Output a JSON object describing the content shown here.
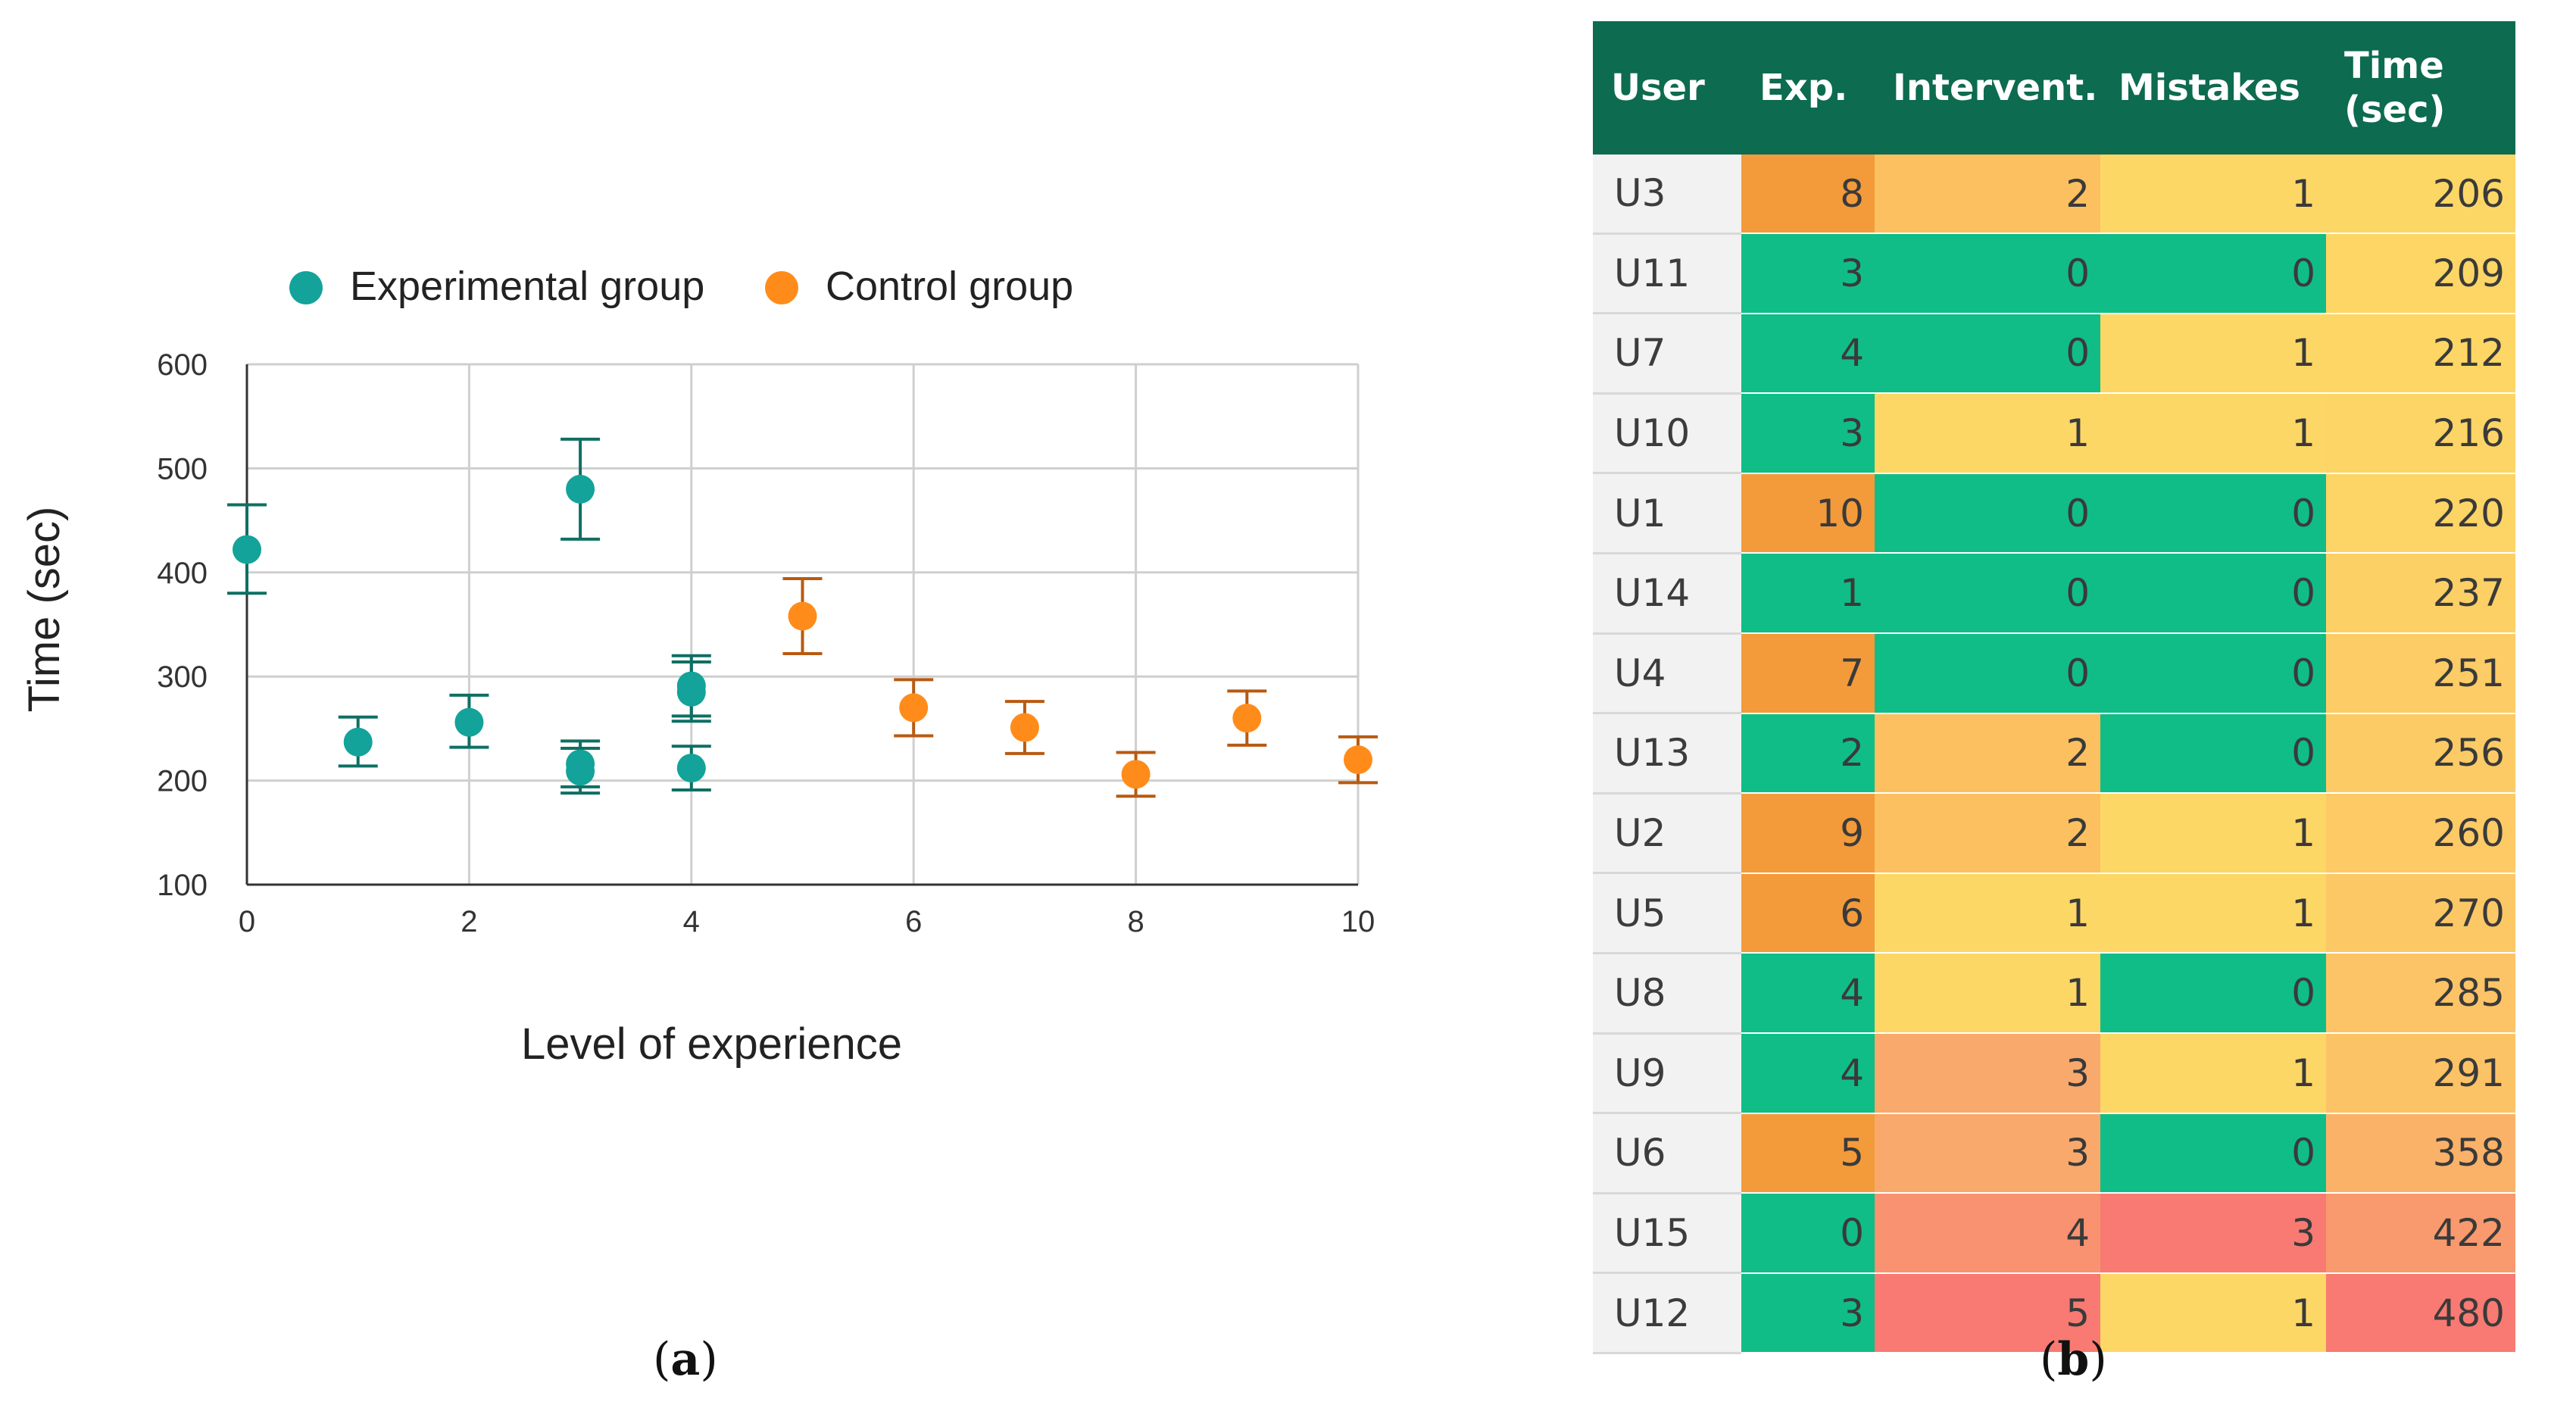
{
  "chart_data": {
    "type": "scatter",
    "xlabel": "Level of experience",
    "ylabel": "Time (sec)",
    "xlim": [
      0,
      10
    ],
    "ylim": [
      100,
      600
    ],
    "xticks": [
      "0",
      "2",
      "4",
      "6",
      "8",
      "10"
    ],
    "yticks": [
      "100",
      "200",
      "300",
      "400",
      "500",
      "600"
    ],
    "grid": true,
    "legend_position": "top",
    "series": [
      {
        "name": "Experimental group",
        "color": "#13a39a",
        "points": [
          {
            "x": 0,
            "y": 422,
            "low": 380,
            "high": 465
          },
          {
            "x": 1,
            "y": 237,
            "low": 214,
            "high": 261
          },
          {
            "x": 2,
            "y": 256,
            "low": 232,
            "high": 282
          },
          {
            "x": 3,
            "y": 480,
            "low": 432,
            "high": 528
          },
          {
            "x": 3,
            "y": 216,
            "low": 194,
            "high": 238
          },
          {
            "x": 3,
            "y": 209,
            "low": 188,
            "high": 231
          },
          {
            "x": 4,
            "y": 291,
            "low": 262,
            "high": 320
          },
          {
            "x": 4,
            "y": 285,
            "low": 257,
            "high": 314
          },
          {
            "x": 4,
            "y": 212,
            "low": 191,
            "high": 233
          }
        ]
      },
      {
        "name": "Control group",
        "color": "#ff8c1a",
        "points": [
          {
            "x": 5,
            "y": 358,
            "low": 322,
            "high": 394
          },
          {
            "x": 6,
            "y": 270,
            "low": 243,
            "high": 297
          },
          {
            "x": 7,
            "y": 251,
            "low": 226,
            "high": 276
          },
          {
            "x": 8,
            "y": 206,
            "low": 185,
            "high": 227
          },
          {
            "x": 9,
            "y": 260,
            "low": 234,
            "high": 286
          },
          {
            "x": 10,
            "y": 220,
            "low": 198,
            "high": 242
          }
        ]
      }
    ]
  },
  "table": {
    "headers": [
      "User",
      "Exp.",
      "Intervent.",
      "Mistakes",
      "Time (sec)"
    ],
    "header_time_line1": "Time",
    "header_time_line2": "(sec)",
    "rows": [
      [
        "U3",
        "8",
        "2",
        "1",
        "206"
      ],
      [
        "U11",
        "3",
        "0",
        "0",
        "209"
      ],
      [
        "U7",
        "4",
        "0",
        "1",
        "212"
      ],
      [
        "U10",
        "3",
        "1",
        "1",
        "216"
      ],
      [
        "U1",
        "10",
        "0",
        "0",
        "220"
      ],
      [
        "U14",
        "1",
        "0",
        "0",
        "237"
      ],
      [
        "U4",
        "7",
        "0",
        "0",
        "251"
      ],
      [
        "U13",
        "2",
        "2",
        "0",
        "256"
      ],
      [
        "U2",
        "9",
        "2",
        "1",
        "260"
      ],
      [
        "U5",
        "6",
        "1",
        "1",
        "270"
      ],
      [
        "U8",
        "4",
        "1",
        "0",
        "285"
      ],
      [
        "U9",
        "4",
        "3",
        "1",
        "291"
      ],
      [
        "U6",
        "5",
        "3",
        "0",
        "358"
      ],
      [
        "U15",
        "0",
        "4",
        "3",
        "422"
      ],
      [
        "U12",
        "3",
        "5",
        "1",
        "480"
      ]
    ]
  },
  "captions": {
    "a_open": "(",
    "a_letter": "a",
    "a_close": ")",
    "b_open": "(",
    "b_letter": "b",
    "b_close": ")"
  }
}
